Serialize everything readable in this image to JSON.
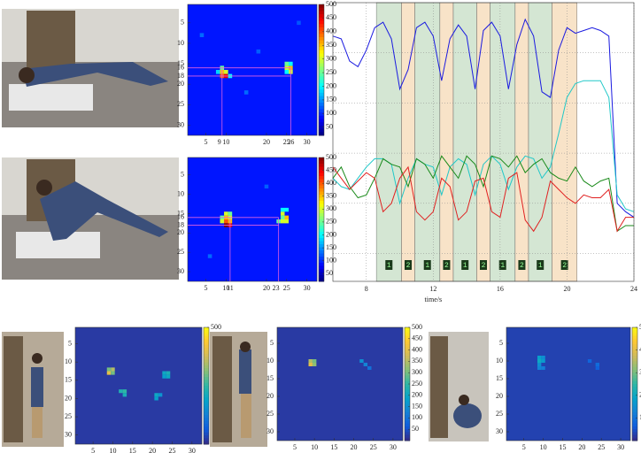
{
  "chart_data": [
    {
      "type": "heatmap",
      "colormap": "jet",
      "clim": [
        20,
        500
      ],
      "background_value": 90,
      "guide_color": "#e060e0",
      "xticks": [
        5,
        9,
        10,
        20,
        25,
        26,
        30
      ],
      "yticks": [
        5,
        10,
        15,
        16,
        18,
        20,
        25,
        30
      ],
      "cbar_ticks": [
        50,
        100,
        150,
        200,
        250,
        300,
        350,
        400,
        450,
        500
      ],
      "cells": [
        [
          9,
          17,
          350
        ],
        [
          10,
          17,
          300
        ],
        [
          9,
          18,
          400
        ],
        [
          10,
          18,
          450
        ],
        [
          9,
          16,
          250
        ],
        [
          11,
          18,
          200
        ],
        [
          8,
          17,
          180
        ],
        [
          25,
          16,
          300
        ],
        [
          26,
          16,
          350
        ],
        [
          25,
          15,
          250
        ],
        [
          26,
          17,
          300
        ],
        [
          25,
          17,
          200
        ],
        [
          26,
          15,
          200
        ],
        [
          4,
          8,
          130
        ],
        [
          15,
          22,
          130
        ],
        [
          28,
          5,
          120
        ],
        [
          18,
          12,
          125
        ]
      ]
    },
    {
      "type": "heatmap",
      "colormap": "jet",
      "clim": [
        20,
        500
      ],
      "background_value": 90,
      "guide_color": "#e060e0",
      "xticks": [
        5,
        10,
        11,
        20,
        23,
        25,
        30
      ],
      "yticks": [
        5,
        10,
        15,
        16,
        18,
        20,
        25,
        30
      ],
      "cbar_ticks": [
        50,
        100,
        150,
        200,
        250,
        300,
        350,
        400,
        450,
        500
      ],
      "cells": [
        [
          10,
          15,
          300
        ],
        [
          11,
          15,
          250
        ],
        [
          10,
          16,
          350
        ],
        [
          11,
          16,
          300
        ],
        [
          10,
          17,
          400
        ],
        [
          10,
          18,
          500
        ],
        [
          11,
          18,
          450
        ],
        [
          9,
          16,
          250
        ],
        [
          9,
          17,
          300
        ],
        [
          11,
          17,
          350
        ],
        [
          23,
          17,
          250
        ],
        [
          24,
          17,
          300
        ],
        [
          24,
          15,
          300
        ],
        [
          25,
          14,
          200
        ],
        [
          24,
          14,
          200
        ],
        [
          25,
          16,
          350
        ],
        [
          25,
          17,
          300
        ],
        [
          24,
          16,
          250
        ],
        [
          6,
          26,
          130
        ],
        [
          20,
          8,
          125
        ]
      ]
    },
    {
      "type": "line",
      "xlim": [
        6,
        24
      ],
      "ylim": [
        0,
        100
      ],
      "xticks": [
        8,
        12,
        16,
        20,
        24
      ],
      "xlabel": "time/s",
      "x": [
        6,
        6.5,
        7,
        7.5,
        8,
        8.5,
        9,
        9.5,
        10,
        10.5,
        11,
        11.5,
        12,
        12.5,
        13,
        13.5,
        14,
        14.5,
        15,
        15.5,
        16,
        16.5,
        17,
        17.5,
        18,
        18.5,
        19,
        19.5,
        20,
        20.5,
        21,
        21.5,
        22,
        22.5,
        23,
        23.5,
        24
      ],
      "series": [
        {
          "color": "#1a1ae0",
          "values": [
            88,
            87,
            79,
            77,
            83,
            91,
            93,
            87,
            69,
            76,
            91,
            93,
            88,
            72,
            87,
            92,
            88,
            69,
            90,
            93,
            88,
            69,
            85,
            94,
            88,
            68,
            66,
            83,
            91,
            89,
            90,
            91,
            90,
            88,
            28,
            25,
            23
          ]
        },
        {
          "color": "#20c8c8",
          "values": [
            37,
            34,
            33,
            37,
            41,
            44,
            44,
            42,
            28,
            37,
            44,
            42,
            41,
            31,
            41,
            44,
            42,
            31,
            42,
            45,
            42,
            33,
            41,
            45,
            44,
            37,
            41,
            53,
            66,
            71,
            72,
            72,
            72,
            66,
            31,
            26,
            25
          ]
        },
        {
          "color": "#1a8a1a",
          "values": [
            37,
            41,
            34,
            30,
            31,
            37,
            44,
            42,
            41,
            34,
            44,
            42,
            37,
            45,
            41,
            37,
            45,
            42,
            34,
            45,
            44,
            41,
            45,
            39,
            42,
            44,
            39,
            37,
            36,
            41,
            36,
            34,
            36,
            37,
            18,
            20,
            20
          ]
        },
        {
          "color": "#e02020",
          "values": [
            41,
            37,
            33,
            36,
            39,
            37,
            25,
            28,
            37,
            41,
            25,
            22,
            25,
            37,
            34,
            22,
            25,
            36,
            37,
            25,
            23,
            37,
            39,
            22,
            18,
            23,
            36,
            33,
            30,
            28,
            31,
            30,
            30,
            33,
            18,
            23,
            23
          ]
        }
      ],
      "phases": [
        {
          "start": 8.6,
          "end": 10.1,
          "label": "1",
          "color": "#d4e6d3"
        },
        {
          "start": 10.1,
          "end": 10.9,
          "label": "2",
          "color": "#f8e3c8"
        },
        {
          "start": 10.9,
          "end": 12.4,
          "label": "1",
          "color": "#d4e6d3"
        },
        {
          "start": 12.4,
          "end": 13.2,
          "label": "2",
          "color": "#f8e3c8"
        },
        {
          "start": 13.2,
          "end": 14.6,
          "label": "1",
          "color": "#d4e6d3"
        },
        {
          "start": 14.6,
          "end": 15.4,
          "label": "2",
          "color": "#f8e3c8"
        },
        {
          "start": 15.4,
          "end": 16.9,
          "label": "1",
          "color": "#d4e6d3"
        },
        {
          "start": 16.9,
          "end": 17.7,
          "label": "2",
          "color": "#f8e3c8"
        },
        {
          "start": 17.7,
          "end": 19.1,
          "label": "1",
          "color": "#d4e6d3"
        },
        {
          "start": 19.1,
          "end": 20.6,
          "label": "2",
          "color": "#f8e3c8"
        }
      ]
    },
    {
      "type": "heatmap",
      "colormap": "parula",
      "clim": [
        0,
        500
      ],
      "background_value": 20,
      "xticks": [
        5,
        10,
        15,
        20,
        25,
        30
      ],
      "yticks": [
        5,
        10,
        15,
        20,
        25,
        30
      ],
      "cbar_ticks": [
        500
      ],
      "cells": [
        [
          9,
          13,
          400
        ],
        [
          10,
          13,
          300
        ],
        [
          10,
          12,
          350
        ],
        [
          9,
          12,
          300
        ],
        [
          13,
          18,
          250
        ],
        [
          13,
          19,
          220
        ],
        [
          12,
          18,
          230
        ],
        [
          23,
          13,
          200
        ],
        [
          24,
          13,
          220
        ],
        [
          24,
          14,
          200
        ],
        [
          23,
          14,
          180
        ],
        [
          21,
          19,
          200
        ],
        [
          21,
          20,
          180
        ],
        [
          22,
          19,
          160
        ]
      ]
    },
    {
      "type": "heatmap",
      "colormap": "parula",
      "clim": [
        0,
        500
      ],
      "background_value": 20,
      "xticks": [
        5,
        10,
        15,
        20,
        25,
        30
      ],
      "yticks": [
        5,
        10,
        15,
        20,
        25,
        30
      ],
      "cbar_ticks": [
        50,
        100,
        150,
        200,
        250,
        300,
        350,
        400,
        450,
        500
      ],
      "cells": [
        [
          9,
          10,
          350
        ],
        [
          10,
          10,
          300
        ],
        [
          9,
          11,
          400
        ],
        [
          10,
          11,
          320
        ],
        [
          22,
          10,
          150
        ],
        [
          23,
          11,
          130
        ],
        [
          24,
          12,
          100
        ]
      ]
    },
    {
      "type": "heatmap",
      "colormap": "parula",
      "clim": [
        0,
        5
      ],
      "background_value": 0.3,
      "xticks": [
        5,
        10,
        15,
        20,
        25,
        30
      ],
      "yticks": [
        5,
        10,
        15,
        20,
        25,
        30
      ],
      "cbar_ticks": [
        1,
        2,
        3,
        4,
        5
      ],
      "cells": [
        [
          9,
          9,
          1.8
        ],
        [
          10,
          9,
          1.5
        ],
        [
          9,
          10,
          2.0
        ],
        [
          10,
          10,
          1.7
        ],
        [
          9,
          11,
          1.5
        ],
        [
          9,
          12,
          1.3
        ],
        [
          10,
          12,
          1.2
        ],
        [
          22,
          10,
          0.8
        ],
        [
          24,
          11,
          0.9
        ],
        [
          24,
          12,
          0.7
        ]
      ]
    }
  ]
}
